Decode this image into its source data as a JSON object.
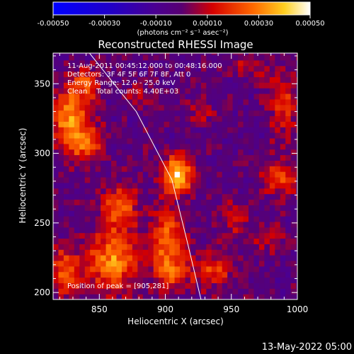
{
  "chart_data": {
    "type": "heatmap",
    "title": "Reconstructed RHESSI Image",
    "xlabel": "Heliocentric X (arcsec)",
    "ylabel": "Heliocentric Y (arcsec)",
    "xlim": [
      815,
      1000
    ],
    "ylim": [
      195,
      372
    ],
    "xticks": [
      850,
      900,
      950,
      1000
    ],
    "yticks": [
      200,
      250,
      300,
      350
    ],
    "colorbar": {
      "range": [
        -0.0005,
        0.0005
      ],
      "ticks": [
        "-0.00050",
        "-0.00030",
        "-0.00010",
        "0.00010",
        "0.00030",
        "0.00050"
      ],
      "units_label": "(photons cm⁻² s⁻¹ asec⁻²)"
    },
    "info_lines": [
      "11-Aug-2011 00:45:12.000 to 00:48:16.000",
      "Detectors: 3F 4F 5F 6F 7F 8F, Att 0",
      "Energy Range: 12.0 - 25.0 keV",
      "Clean    Total counts: 4.40E+03"
    ],
    "peak_label": "Position of peak = [905,281]",
    "peak": [
      905,
      281
    ],
    "limb_points": [
      [
        840,
        375
      ],
      [
        878,
        330
      ],
      [
        905,
        281
      ],
      [
        917,
        235
      ],
      [
        927,
        195
      ]
    ],
    "sources": [
      {
        "x": 907,
        "y": 283,
        "amp": 0.00046,
        "sx": 8,
        "sy": 9
      },
      {
        "x": 825,
        "y": 325,
        "amp": 0.00034,
        "sx": 9,
        "sy": 14
      },
      {
        "x": 838,
        "y": 305,
        "amp": 0.00028,
        "sx": 9,
        "sy": 10
      },
      {
        "x": 838,
        "y": 348,
        "amp": 0.00022,
        "sx": 8,
        "sy": 8
      },
      {
        "x": 862,
        "y": 258,
        "amp": 0.00028,
        "sx": 10,
        "sy": 12
      },
      {
        "x": 858,
        "y": 220,
        "amp": 0.00034,
        "sx": 14,
        "sy": 14
      },
      {
        "x": 900,
        "y": 238,
        "amp": 0.0003,
        "sx": 9,
        "sy": 14
      },
      {
        "x": 903,
        "y": 212,
        "amp": 0.00024,
        "sx": 9,
        "sy": 9
      },
      {
        "x": 935,
        "y": 215,
        "amp": 0.0002,
        "sx": 11,
        "sy": 10
      },
      {
        "x": 822,
        "y": 212,
        "amp": 0.00028,
        "sx": 8,
        "sy": 12
      },
      {
        "x": 988,
        "y": 335,
        "amp": 0.0002,
        "sx": 8,
        "sy": 18
      },
      {
        "x": 985,
        "y": 280,
        "amp": 0.00024,
        "sx": 9,
        "sy": 9
      },
      {
        "x": 950,
        "y": 252,
        "amp": 0.00016,
        "sx": 8,
        "sy": 8
      },
      {
        "x": 960,
        "y": 360,
        "amp": 0.00012,
        "sx": 10,
        "sy": 6
      },
      {
        "x": 877,
        "y": 340,
        "amp": 0.00012,
        "sx": 7,
        "sy": 6
      },
      {
        "x": 975,
        "y": 238,
        "amp": 0.00012,
        "sx": 8,
        "sy": 8
      },
      {
        "x": 925,
        "y": 330,
        "amp": 0.0001,
        "sx": 8,
        "sy": 8
      }
    ]
  },
  "footer_timestamp": "13-May-2022 05:00"
}
